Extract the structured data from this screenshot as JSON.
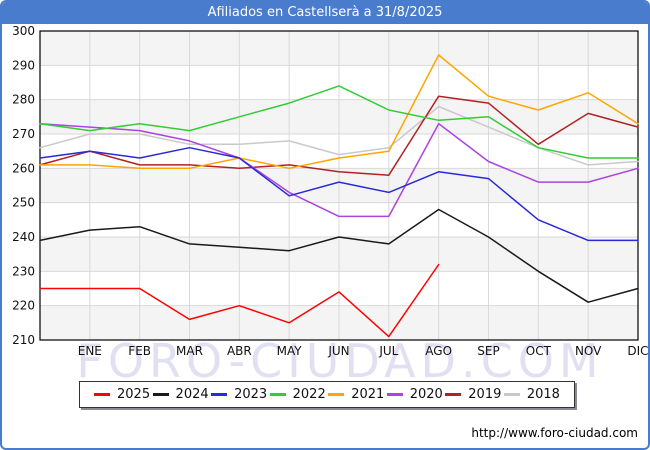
{
  "chart_data": {
    "type": "line",
    "title": "Afiliados en Castellserà a 31/8/2025",
    "x_labels": [
      "ENE",
      "FEB",
      "MAR",
      "ABR",
      "MAY",
      "JUN",
      "JUL",
      "AGO",
      "SEP",
      "OCT",
      "NOV",
      "DIC"
    ],
    "x_note": "Each series has 13 points: the first is plotted on the left axis border before ENE; series 2025 ends at AGO.",
    "ylim": [
      210,
      300
    ],
    "ytick_step": 10,
    "grid": true,
    "legend_position": "bottom",
    "watermark": "FORO-CIUDAD.COM",
    "series": [
      {
        "name": "2025",
        "color": "#ff0000",
        "values": [
          225,
          225,
          225,
          216,
          220,
          215,
          224,
          211,
          232
        ]
      },
      {
        "name": "2024",
        "color": "#1a1a1a",
        "values": [
          239,
          242,
          243,
          238,
          237,
          236,
          240,
          238,
          248,
          240,
          230,
          221,
          225
        ]
      },
      {
        "name": "2023",
        "color": "#2a2ad6",
        "values": [
          263,
          265,
          263,
          266,
          263,
          252,
          256,
          253,
          259,
          257,
          245,
          239,
          239
        ]
      },
      {
        "name": "2022",
        "color": "#33cc33",
        "values": [
          273,
          271,
          273,
          271,
          275,
          279,
          284,
          277,
          274,
          275,
          266,
          263,
          263
        ]
      },
      {
        "name": "2021",
        "color": "#ffa500",
        "values": [
          261,
          261,
          260,
          260,
          263,
          260,
          263,
          265,
          293,
          281,
          277,
          282,
          273
        ]
      },
      {
        "name": "2020",
        "color": "#ab43e0",
        "values": [
          273,
          272,
          271,
          268,
          263,
          253,
          246,
          246,
          273,
          262,
          256,
          256,
          260
        ]
      },
      {
        "name": "2019",
        "color": "#b22222",
        "values": [
          261,
          265,
          261,
          261,
          260,
          261,
          259,
          258,
          281,
          279,
          267,
          276,
          272
        ]
      },
      {
        "name": "2018",
        "color": "#c9c9c9",
        "values": [
          266,
          270,
          270,
          267,
          267,
          268,
          264,
          266,
          278,
          272,
          266,
          261,
          262
        ]
      }
    ]
  },
  "footer": {
    "url": "http://www.foro-ciudad.com"
  },
  "colors": {
    "frame": "#4a7ccd",
    "band": "#f4f4f4",
    "grid": "#d9d9d9",
    "plot_border": "#000000",
    "axis_text": "#111111",
    "watermark": "#d9d9ef"
  }
}
